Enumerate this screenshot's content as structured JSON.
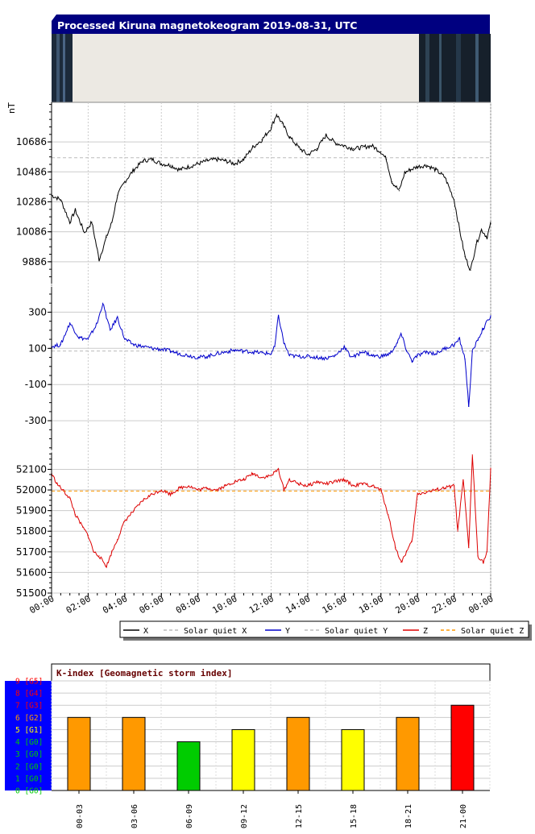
{
  "title": "Processed Kiruna magnetokeogram 2019-08-31, UTC",
  "unit_label": "nT",
  "x_ticks": [
    "00:00",
    "02:00",
    "04:00",
    "06:00",
    "08:00",
    "10:00",
    "12:00",
    "14:00",
    "16:00",
    "18:00",
    "20:00",
    "22:00",
    "00:00"
  ],
  "colors": {
    "title_bar": "#000080",
    "x": "#000000",
    "y": "#0000cc",
    "z": "#dd0000",
    "quiet_xy": "#bbbbbb",
    "quiet_z": "#ff9900",
    "k_green": "#00cc00",
    "k_yellow": "#ffff00",
    "k_orange": "#ff9900",
    "k_red": "#ff0000",
    "k_scale_bg": "#0000ff"
  },
  "legend": [
    {
      "label": "X",
      "style": "solid",
      "color": "#000000"
    },
    {
      "label": "Solar quiet X",
      "style": "dashed",
      "color": "#bbbbbb"
    },
    {
      "label": "Y",
      "style": "solid",
      "color": "#0000cc"
    },
    {
      "label": "Solar quiet Y",
      "style": "dashed",
      "color": "#bbbbbb"
    },
    {
      "label": "Z",
      "style": "solid",
      "color": "#dd0000"
    },
    {
      "label": "Solar quiet Z",
      "style": "dashed",
      "color": "#ff9900"
    }
  ],
  "chart_data": [
    {
      "type": "line",
      "name_component": "X",
      "y_ticks": [
        9886,
        10086,
        10286,
        10486,
        10686
      ],
      "ylim": [
        9740,
        10950
      ],
      "quiet_value": 10580,
      "x_hours": [
        0,
        0.5,
        1,
        1.3,
        1.8,
        2.2,
        2.6,
        3.0,
        3.3,
        3.6,
        4.0,
        4.5,
        5,
        5.5,
        6,
        6.5,
        7,
        7.5,
        8,
        8.5,
        9,
        9.5,
        10,
        10.5,
        11,
        11.5,
        12,
        12.3,
        12.6,
        13,
        13.5,
        14,
        14.5,
        15,
        15.5,
        16,
        16.5,
        17,
        17.5,
        18,
        18.3,
        18.6,
        19,
        19.3,
        19.6,
        20,
        20.5,
        21,
        21.5,
        22,
        22.3,
        22.6,
        22.9,
        23.2,
        23.5,
        23.8,
        24
      ],
      "values": [
        10330,
        10300,
        10150,
        10230,
        10080,
        10150,
        9900,
        10050,
        10150,
        10330,
        10420,
        10500,
        10560,
        10570,
        10540,
        10530,
        10500,
        10520,
        10540,
        10560,
        10570,
        10560,
        10540,
        10570,
        10650,
        10700,
        10780,
        10870,
        10810,
        10720,
        10650,
        10600,
        10640,
        10730,
        10680,
        10660,
        10640,
        10650,
        10660,
        10620,
        10570,
        10420,
        10360,
        10480,
        10500,
        10520,
        10530,
        10500,
        10450,
        10300,
        10100,
        9920,
        9830,
        10000,
        10100,
        10050,
        10140
      ]
    },
    {
      "type": "line",
      "name_component": "Y",
      "y_ticks": [
        -300,
        -100,
        100,
        300
      ],
      "ylim": [
        -460,
        440
      ],
      "quiet_value": 85,
      "x_hours": [
        0,
        0.5,
        1,
        1.5,
        2,
        2.5,
        2.8,
        3.2,
        3.6,
        4,
        4.5,
        5,
        5.5,
        6,
        6.5,
        7,
        7.5,
        8,
        8.5,
        9,
        9.5,
        10,
        10.5,
        11,
        11.5,
        12,
        12.2,
        12.4,
        12.7,
        13,
        13.5,
        14,
        14.5,
        15,
        15.5,
        16,
        16.3,
        16.6,
        17,
        17.5,
        18,
        18.5,
        18.9,
        19.1,
        19.4,
        19.7,
        20,
        20.5,
        21,
        21.5,
        22,
        22.3,
        22.6,
        22.8,
        23,
        23.3,
        23.6,
        24
      ],
      "values": [
        110,
        120,
        240,
        160,
        150,
        240,
        350,
        200,
        270,
        150,
        120,
        110,
        100,
        95,
        85,
        70,
        60,
        50,
        55,
        70,
        80,
        90,
        85,
        80,
        75,
        70,
        110,
        280,
        130,
        60,
        55,
        55,
        50,
        45,
        60,
        110,
        60,
        55,
        85,
        60,
        55,
        70,
        130,
        180,
        90,
        30,
        60,
        80,
        70,
        100,
        120,
        150,
        40,
        -220,
        80,
        150,
        210,
        280
      ]
    },
    {
      "type": "line",
      "name_component": "Z",
      "y_ticks": [
        51500,
        51600,
        51700,
        51800,
        51900,
        52000,
        52100
      ],
      "ylim": [
        51500,
        52180
      ],
      "quiet_value": 51995,
      "x_hours": [
        0,
        0.3,
        0.6,
        1.0,
        1.3,
        1.7,
        2.0,
        2.3,
        2.6,
        3.0,
        3.3,
        3.6,
        4,
        4.5,
        5,
        5.5,
        6,
        6.5,
        7,
        7.5,
        8,
        8.5,
        9,
        9.5,
        10,
        10.5,
        11,
        11.5,
        12,
        12.4,
        12.7,
        13,
        13.5,
        14,
        14.5,
        15,
        15.5,
        16,
        16.5,
        17,
        17.5,
        18,
        18.4,
        18.8,
        19.1,
        19.4,
        19.7,
        20,
        20.5,
        21,
        21.5,
        22,
        22.2,
        22.5,
        22.8,
        23,
        23.3,
        23.6,
        23.8,
        24
      ],
      "values": [
        52080,
        52030,
        52000,
        51960,
        51880,
        51820,
        51780,
        51700,
        51680,
        51630,
        51700,
        51760,
        51850,
        51900,
        51950,
        51980,
        52000,
        51980,
        52010,
        52020,
        52000,
        52010,
        52000,
        52020,
        52040,
        52050,
        52080,
        52060,
        52070,
        52100,
        52000,
        52050,
        52030,
        52020,
        52040,
        52030,
        52040,
        52050,
        52020,
        52030,
        52020,
        52000,
        51880,
        51720,
        51650,
        51700,
        51750,
        51980,
        51990,
        52000,
        52010,
        52020,
        51800,
        52050,
        51720,
        52170,
        51680,
        51650,
        51700,
        52100
      ]
    },
    {
      "type": "bar",
      "title": "K-index [Geomagnetic storm index]",
      "categories": [
        "00-03",
        "03-06",
        "06-09",
        "09-12",
        "12-15",
        "15-18",
        "18-21",
        "21-00"
      ],
      "values": [
        6,
        6,
        4,
        5,
        6,
        5,
        6,
        7
      ],
      "ylim": [
        0,
        9
      ],
      "scale_labels": [
        "0 [G0]",
        "1 [G0]",
        "2 [G0]",
        "3 [G0]",
        "4 [G0]",
        "5 [G1]",
        "6 [G2]",
        "7 [G3]",
        "8 [G4]",
        "9 [G5]"
      ],
      "scale_colors": [
        "#00cc00",
        "#00cc00",
        "#00cc00",
        "#00cc00",
        "#00cc00",
        "#ffff00",
        "#ff9900",
        "#ff0000",
        "#ff0000",
        "#ff0000"
      ]
    }
  ]
}
